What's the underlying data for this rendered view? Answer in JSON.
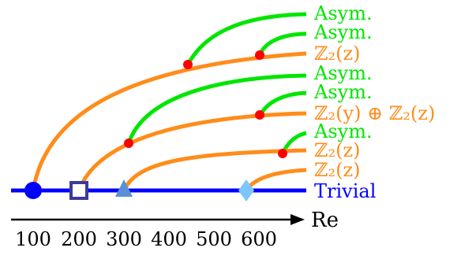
{
  "colors": {
    "trivial": "#0000ff",
    "z2": "#ff8c1a",
    "asym": "#00e600",
    "bifurcation_dot": "#ff0000",
    "square_marker": "#3b3b99",
    "triangle_marker": "#5b8fd6",
    "diamond_marker": "#7cc6ff",
    "axis": "#000000"
  },
  "labels": {
    "asym_1": "Asym.",
    "asym_2": "Asym.",
    "z2z_top": "ℤ₂(z)",
    "asym_3": "Asym.",
    "asym_4": "Asym.",
    "z2y_z2z": "ℤ₂(y) ⊕ ℤ₂(z)",
    "asym_5": "Asym.",
    "z2z_mid": "ℤ₂(z)",
    "z2z_low": "ℤ₂(z)",
    "trivial": "Trivial"
  },
  "axis": {
    "name": "Re",
    "ticks": [
      "100",
      "200",
      "300",
      "400",
      "500",
      "600"
    ]
  },
  "markers": [
    "circle",
    "square",
    "triangle",
    "diamond"
  ]
}
